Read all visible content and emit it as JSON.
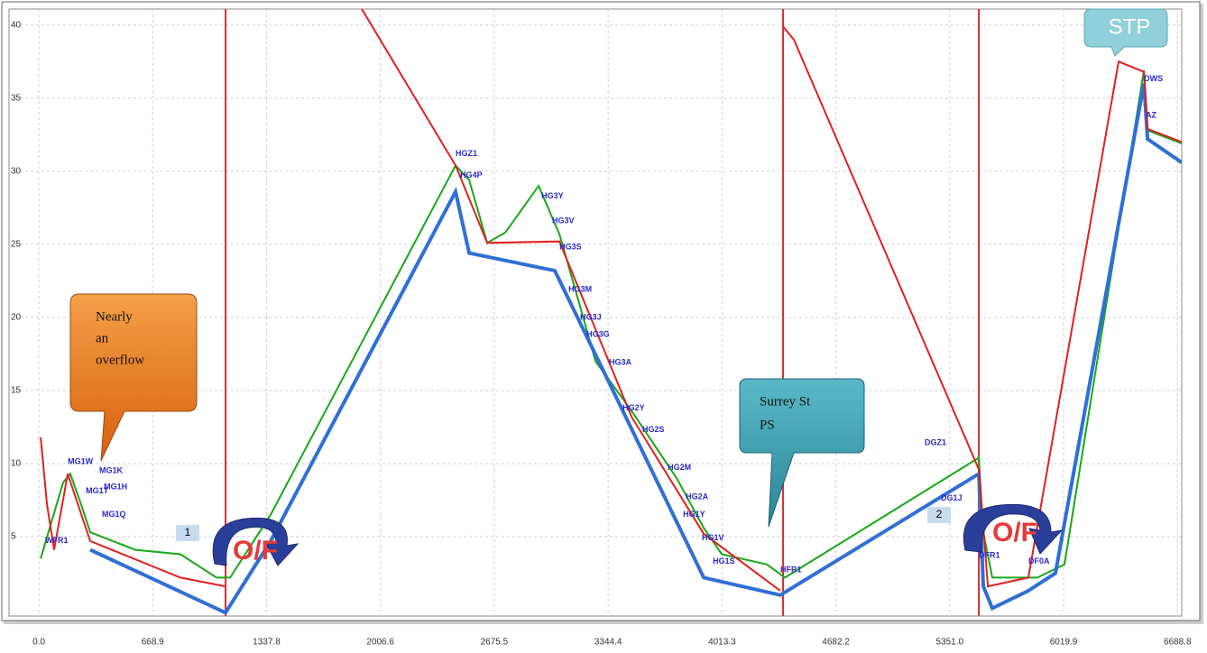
{
  "chart_data": {
    "type": "line",
    "xlim": [
      -175,
      6714
    ],
    "ylim": [
      -0.43,
      41.1
    ],
    "xticks": [
      {
        "value": 0,
        "label": "0.0"
      },
      668.9,
      1337.8,
      2006.6,
      2675.5,
      3344.4,
      4013.3,
      4682.2,
      {
        "value": 5351,
        "label": "5351.0"
      },
      6019.9,
      6688.8
    ],
    "yticks": [
      5,
      10,
      15,
      20,
      25,
      30,
      35,
      40
    ],
    "grid": true,
    "series": [
      {
        "color": "#18a818",
        "x": [
          11,
          64,
          143,
          185,
          249,
          302,
          567,
          832,
          1044,
          1124,
          1362,
          2448,
          2528,
          2634,
          2740,
          2936,
          3058,
          3164,
          3270,
          3482,
          3747,
          3906,
          4012,
          4277,
          4383,
          5522,
          5548,
          5601,
          5866,
          6025,
          6492,
          6513,
          6714
        ],
        "values": [
          3.5,
          5.6,
          8.7,
          9.3,
          7.2,
          5.3,
          4.1,
          3.8,
          2.2,
          2.2,
          6.5,
          30.4,
          29.4,
          25.1,
          25.8,
          29.0,
          25.7,
          21.4,
          17.0,
          13.6,
          9.0,
          5.6,
          3.8,
          3.1,
          2.2,
          10.4,
          5.3,
          2.2,
          2.2,
          3.1,
          36.9,
          32.8,
          31.9
        ]
      },
      {
        "color": "#2f6fd6",
        "x": [
          302,
          1097,
          1362,
          2448,
          2528,
          3031,
          3906,
          4356,
          5522,
          5548,
          5601,
          5813,
          5972,
          6492,
          6513,
          6714
        ],
        "values": [
          4.1,
          -0.2,
          4.7,
          28.6,
          24.4,
          23.2,
          2.2,
          1.0,
          9.3,
          1.6,
          0.1,
          1.3,
          2.5,
          36.0,
          32.2,
          30.6
        ]
      },
      {
        "color": "#e02020",
        "x": [
          11,
          48,
          90,
          170,
          302,
          832,
          1097,
          null,
          1892,
          2448,
          2634,
          3058,
          3482,
          3906,
          4356,
          null,
          4372,
          4436,
          5522,
          5575,
          5813,
          6343,
          6492,
          6513,
          6714
        ],
        "values": [
          11.8,
          7.2,
          4.1,
          9.3,
          4.7,
          2.2,
          1.6,
          null,
          41.2,
          30.4,
          25.1,
          25.2,
          13.2,
          5.2,
          1.3,
          null,
          39.9,
          39.0,
          9.6,
          1.6,
          2.2,
          37.5,
          36.8,
          32.9,
          32.0
        ]
      }
    ],
    "markers_x": [
      1097,
      4372,
      5522
    ],
    "annotations": [
      {
        "text": "HGZ1",
        "x": 2448,
        "y": 31.2
      },
      {
        "text": "HG4P",
        "x": 2475,
        "y": 29.7
      },
      {
        "text": "HG3Y",
        "x": 2952,
        "y": 28.3
      },
      {
        "text": "HG3V",
        "x": 3015,
        "y": 26.6
      },
      {
        "text": "HG3S",
        "x": 3058,
        "y": 24.8
      },
      {
        "text": "HG3M",
        "x": 3111,
        "y": 21.9
      },
      {
        "text": "HG3J",
        "x": 3180,
        "y": 20.0
      },
      {
        "text": "HG3G",
        "x": 3217,
        "y": 18.8
      },
      {
        "text": "HG3A",
        "x": 3349,
        "y": 16.9
      },
      {
        "text": "HG2Y",
        "x": 3429,
        "y": 13.8
      },
      {
        "text": "HG2S",
        "x": 3545,
        "y": 12.3
      },
      {
        "text": "HG2M",
        "x": 3694,
        "y": 9.7
      },
      {
        "text": "HG2A",
        "x": 3800,
        "y": 7.7
      },
      {
        "text": "HG1Y",
        "x": 3784,
        "y": 6.5
      },
      {
        "text": "HG1V",
        "x": 3895,
        "y": 4.9
      },
      {
        "text": "HG1S",
        "x": 3959,
        "y": 3.3
      },
      {
        "text": "HFR1",
        "x": 4356,
        "y": 2.7
      },
      {
        "text": "DGZ1",
        "x": 5204,
        "y": 11.4
      },
      {
        "text": "DG1J",
        "x": 5299,
        "y": 7.6
      },
      {
        "text": "DFR1",
        "x": 5522,
        "y": 3.7
      },
      {
        "text": "DF0A",
        "x": 5813,
        "y": 3.3
      },
      {
        "text": "DWS",
        "x": 6492,
        "y": 36.3
      },
      {
        "text": "AZ",
        "x": 6502,
        "y": 33.8
      },
      {
        "text": "MG1K",
        "x": 355,
        "y": 9.5
      },
      {
        "text": "MG1H",
        "x": 382,
        "y": 8.4
      },
      {
        "text": "MG1T",
        "x": 276,
        "y": 8.1
      },
      {
        "text": "MG1Q",
        "x": 371,
        "y": 6.5
      },
      {
        "text": "WFR1",
        "x": 37,
        "y": 4.7
      },
      {
        "text": "MG1W",
        "x": 170,
        "y": 10.1
      }
    ]
  },
  "callouts": {
    "overflow": [
      "Nearly",
      "an",
      "overflow"
    ],
    "pump": [
      "Surrey St",
      "PS"
    ],
    "of": [
      "O/F",
      "O/F"
    ],
    "numbers": [
      "1",
      "2"
    ],
    "stp": "STP"
  }
}
